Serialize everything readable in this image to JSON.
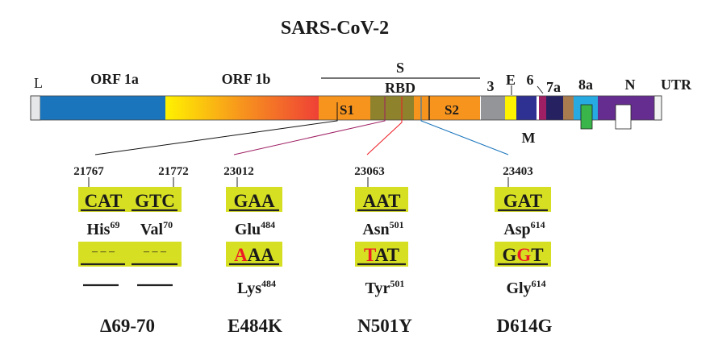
{
  "title": "SARS-CoV-2",
  "genome": {
    "L": "L",
    "orf1a": "ORF 1a",
    "orf1b": "ORF 1b",
    "S": "S",
    "RBD": "RBD",
    "S1": "S1",
    "S2": "S2",
    "g3": "3",
    "E": "E",
    "g6": "6",
    "g7a": "7a",
    "M": "M",
    "g8a": "8a",
    "N": "N",
    "UTR": "UTR"
  },
  "colors": {
    "orf1a": "#1b75bc",
    "spike": "#f7941d",
    "rbd": "#8e822c",
    "orf3": "#939598",
    "E": "#fff200",
    "M": "#2e3192",
    "orf6": "#9e1f63",
    "orf7a": "#262262",
    "orf7b": "#a97c50",
    "orf8a": "#27aae1",
    "N": "#662d91",
    "highlight": "#d7df23",
    "mutation": "#ed1c24"
  },
  "mutations": [
    {
      "positions": [
        "21767",
        "21772"
      ],
      "codons": [
        "CAT",
        "GTC"
      ],
      "aa": [
        "His",
        "Val"
      ],
      "aa_num": [
        "69",
        "70"
      ],
      "mut_codons": [
        "– – –",
        "– – –"
      ],
      "label": "Δ69-70"
    },
    {
      "position": "23012",
      "codon": "GAA",
      "aa": "Glu",
      "aa_num": "484",
      "mut_first": "A",
      "mut_rest": "AA",
      "mut_aa": "Lys",
      "mut_num": "484",
      "label": "E484K"
    },
    {
      "position": "23063",
      "codon": "AAT",
      "aa": "Asn",
      "aa_num": "501",
      "mut_first": "T",
      "mut_rest": "AT",
      "mut_aa": "Tyr",
      "mut_num": "501",
      "label": "N501Y"
    },
    {
      "position": "23403",
      "codon": "GAT",
      "aa": "Asp",
      "aa_num": "614",
      "mut_pre": "G",
      "mut_mid": "G",
      "mut_post": "T",
      "mut_aa": "Gly",
      "mut_num": "614",
      "label": "D614G"
    }
  ]
}
